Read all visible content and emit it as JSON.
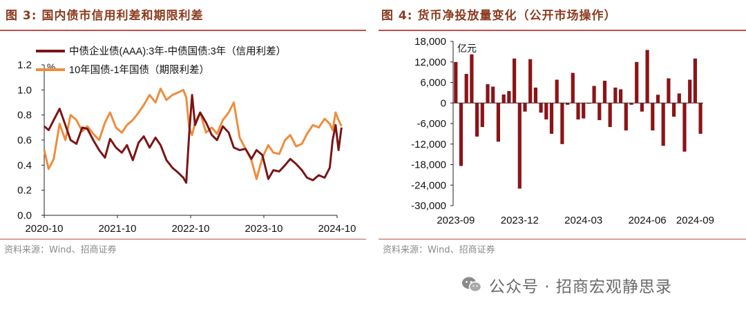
{
  "left_panel": {
    "title": "图 3:  国内债市信用利差和期限利差",
    "source": "资料来源：Wind、招商证券"
  },
  "right_panel": {
    "title": "图 4:  货币净投放量变化（公开市场操作）",
    "source": "资料来源：Wind、招商证券"
  },
  "watermark": {
    "text": "公众号 · 招商宏观静思录"
  },
  "chart_data": [
    {
      "type": "line",
      "ylabel": "%",
      "ylim": [
        0.0,
        1.2
      ],
      "yticks": [
        "0.0",
        "0.2",
        "0.4",
        "0.6",
        "0.8",
        "1.0",
        "1.2"
      ],
      "xticks": [
        "2020-10",
        "2021-10",
        "2022-10",
        "2023-10",
        "2024-10"
      ],
      "legend_placement": "top",
      "series": [
        {
          "name": "中债企业债(AAA):3年-中债国债:3年（信用利差）",
          "color": "#7B1416",
          "x": [
            2020.79,
            2020.85,
            2020.92,
            2021.0,
            2021.08,
            2021.15,
            2021.23,
            2021.31,
            2021.38,
            2021.46,
            2021.54,
            2021.62,
            2021.69,
            2021.77,
            2021.85,
            2021.92,
            2022.0,
            2022.08,
            2022.15,
            2022.23,
            2022.31,
            2022.38,
            2022.46,
            2022.54,
            2022.62,
            2022.69,
            2022.73,
            2022.77,
            2022.81,
            2022.85,
            2022.92,
            2023.0,
            2023.08,
            2023.15,
            2023.23,
            2023.31,
            2023.38,
            2023.46,
            2023.54,
            2023.62,
            2023.69,
            2023.77,
            2023.85,
            2023.92,
            2024.0,
            2024.08,
            2024.15,
            2024.23,
            2024.31,
            2024.38,
            2024.46,
            2024.54,
            2024.62,
            2024.69,
            2024.73,
            2024.77,
            2024.81,
            2024.85
          ],
          "y": [
            0.71,
            0.68,
            0.76,
            0.85,
            0.72,
            0.6,
            0.57,
            0.7,
            0.69,
            0.6,
            0.52,
            0.46,
            0.61,
            0.54,
            0.5,
            0.56,
            0.44,
            0.58,
            0.63,
            0.54,
            0.62,
            0.56,
            0.44,
            0.38,
            0.34,
            0.3,
            0.26,
            0.65,
            0.96,
            0.72,
            0.82,
            0.74,
            0.64,
            0.6,
            0.71,
            0.66,
            0.54,
            0.52,
            0.53,
            0.45,
            0.52,
            0.48,
            0.29,
            0.36,
            0.35,
            0.4,
            0.45,
            0.41,
            0.36,
            0.3,
            0.28,
            0.32,
            0.3,
            0.38,
            0.6,
            0.72,
            0.52,
            0.7
          ]
        },
        {
          "name": "10年国债-1年国债（期限利差）",
          "color": "#EE8C3C",
          "x": [
            2020.79,
            2020.85,
            2020.92,
            2021.0,
            2021.08,
            2021.15,
            2021.23,
            2021.31,
            2021.38,
            2021.46,
            2021.54,
            2021.62,
            2021.69,
            2021.77,
            2021.85,
            2021.92,
            2022.0,
            2022.08,
            2022.15,
            2022.23,
            2022.31,
            2022.38,
            2022.46,
            2022.54,
            2022.62,
            2022.69,
            2022.73,
            2022.77,
            2022.81,
            2022.85,
            2022.92,
            2023.0,
            2023.08,
            2023.15,
            2023.23,
            2023.31,
            2023.38,
            2023.46,
            2023.54,
            2023.62,
            2023.69,
            2023.77,
            2023.85,
            2023.92,
            2024.0,
            2024.08,
            2024.15,
            2024.23,
            2024.31,
            2024.38,
            2024.46,
            2024.54,
            2024.62,
            2024.69,
            2024.73,
            2024.77,
            2024.81,
            2024.85
          ],
          "y": [
            0.52,
            0.37,
            0.45,
            0.73,
            0.6,
            0.8,
            0.76,
            0.67,
            0.71,
            0.65,
            0.6,
            0.74,
            0.82,
            0.7,
            0.66,
            0.72,
            0.76,
            0.82,
            0.88,
            0.96,
            0.9,
            1.01,
            0.92,
            0.96,
            0.98,
            1.0,
            0.94,
            0.7,
            0.64,
            0.74,
            0.82,
            0.66,
            0.7,
            0.65,
            0.76,
            0.82,
            0.9,
            0.62,
            0.53,
            0.44,
            0.29,
            0.46,
            0.56,
            0.5,
            0.49,
            0.6,
            0.64,
            0.55,
            0.57,
            0.65,
            0.72,
            0.7,
            0.77,
            0.73,
            0.68,
            0.82,
            0.76,
            0.71
          ]
        }
      ]
    },
    {
      "type": "bar",
      "ylabel": "亿元",
      "ylim": [
        -30000,
        18000
      ],
      "yticks": [
        "-30,000",
        "-24,000",
        "-18,000",
        "-12,000",
        "-6,000",
        "0",
        "6,000",
        "12,000",
        "18,000"
      ],
      "xticks": [
        "2023-09",
        "2023-12",
        "2024-03",
        "2024-06",
        "2024-09"
      ],
      "color": "#8B1418",
      "values": [
        12000,
        -18400,
        8500,
        14200,
        -9800,
        -7000,
        5500,
        4800,
        -11300,
        2500,
        3500,
        13000,
        -25000,
        -2500,
        12800,
        4500,
        -2800,
        -4800,
        -9000,
        6800,
        -12000,
        -500,
        8800,
        -4800,
        -4500,
        -200,
        5000,
        -5000,
        6500,
        -7000,
        4500,
        4000,
        -8000,
        -500,
        12000,
        -2500,
        15500,
        -8000,
        2400,
        -12500,
        7200,
        -4000,
        2800,
        -14200,
        6800,
        13000,
        -9000
      ]
    }
  ]
}
